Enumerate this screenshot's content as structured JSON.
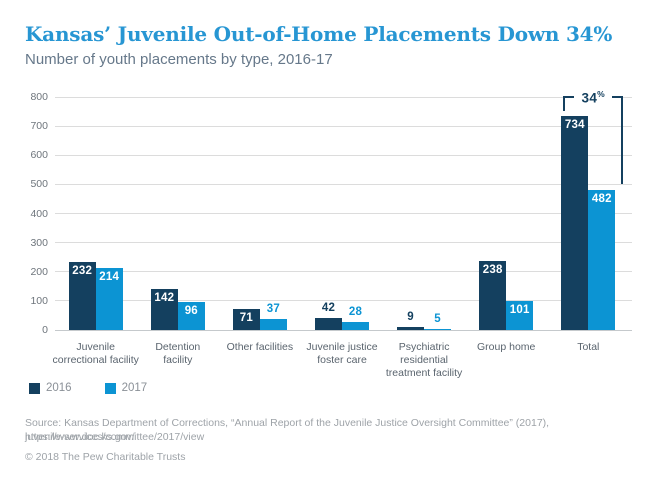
{
  "header": {
    "title": "Kansas’ Juvenile Out-of-Home Placements Down 34%",
    "subtitle": "Number of youth placements by type, 2016-17"
  },
  "chart_data": {
    "type": "bar",
    "title": "Kansas’ Juvenile Out-of-Home Placements Down 34%",
    "subtitle": "Number of youth placements by type, 2016-17",
    "categories": [
      "Juvenile\ncorrectional facility",
      "Detention\nfacility",
      "Other facilities",
      "Juvenile justice\nfoster care",
      "Psychiatric\nresidential\ntreatment facility",
      "Group home",
      "Total"
    ],
    "series": [
      {
        "name": "2016",
        "color": "#14405F",
        "values": [
          232,
          142,
          71,
          42,
          9,
          238,
          734
        ]
      },
      {
        "name": "2017",
        "color": "#0C94D3",
        "values": [
          214,
          96,
          37,
          28,
          5,
          101,
          482
        ]
      }
    ],
    "ylim": [
      0,
      800
    ],
    "ytick_step": 100,
    "grid": true,
    "legend_position": "bottom-left",
    "annotation": {
      "value": "34",
      "suffix": "%",
      "applies_to": "Total"
    }
  },
  "footer": {
    "source_line1": "Source: Kansas Department of Corrections, “Annual Report of the Juvenile Justice Oversight Committee” (2017), https://www.doc.ks.gov/",
    "source_line2": "juvenile-services/committee/2017/view",
    "copyright": "© 2018 The Pew Charitable Trusts"
  },
  "colors": {
    "title": "#2796D3",
    "subtitle": "#66788A",
    "grid": "#DCDCDC",
    "baseline": "#C5C9CC",
    "axis_text": "#6E757C",
    "category_text": "#5A646E",
    "legend_text": "#8A9097",
    "footer_text": "#9EA3A8",
    "white": "#FFFFFF"
  }
}
